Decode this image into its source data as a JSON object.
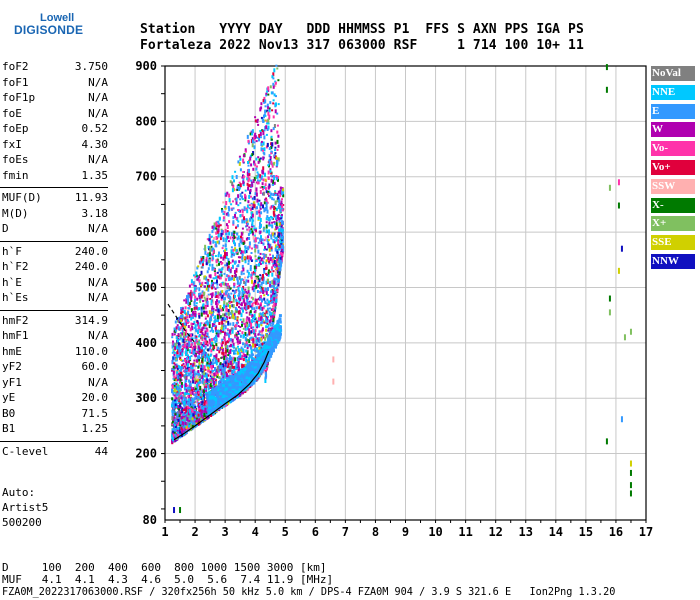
{
  "logo": {
    "line1": "Lowell",
    "line2": "DIGISONDE"
  },
  "header": {
    "line1": "Station   YYYY DAY   DDD HHMMSS P1  FFS S AXN PPS IGA PS",
    "line2": "Fortaleza 2022 Nov13 317 063000 RSF     1 714 100 10+ 11"
  },
  "params": [
    {
      "name": "foF2",
      "value": "3.750"
    },
    {
      "name": "foF1",
      "value": "N/A"
    },
    {
      "name": "foF1p",
      "value": "N/A"
    },
    {
      "name": "foE",
      "value": "N/A"
    },
    {
      "name": "foEp",
      "value": "0.52"
    },
    {
      "name": "fxI",
      "value": "4.30"
    },
    {
      "name": "foEs",
      "value": "N/A"
    },
    {
      "name": "fmin",
      "value": "1.35"
    },
    {
      "name": "MUF(D)",
      "value": "11.93"
    },
    {
      "name": "M(D)",
      "value": "3.18"
    },
    {
      "name": "D",
      "value": "N/A"
    },
    {
      "name": "h`F",
      "value": "240.0"
    },
    {
      "name": "h`F2",
      "value": "240.0"
    },
    {
      "name": "h`E",
      "value": "N/A"
    },
    {
      "name": "h`Es",
      "value": "N/A"
    },
    {
      "name": "hmF2",
      "value": "314.9"
    },
    {
      "name": "hmF1",
      "value": "N/A"
    },
    {
      "name": "hmE",
      "value": "110.0"
    },
    {
      "name": "yF2",
      "value": "60.0"
    },
    {
      "name": "yF1",
      "value": "N/A"
    },
    {
      "name": "yE",
      "value": "20.0"
    },
    {
      "name": "B0",
      "value": "71.5"
    },
    {
      "name": "B1",
      "value": "1.25"
    },
    {
      "name": "C-level",
      "value": "44"
    }
  ],
  "auto": {
    "line1": "Auto:",
    "line2": "Artist5",
    "line3": "500200"
  },
  "legend": [
    {
      "label": "NoVal",
      "color": "#808080",
      "text_color": "#ffffff"
    },
    {
      "label": "NNE",
      "color": "#00c8ff",
      "text_color": "#ffffff"
    },
    {
      "label": "E",
      "color": "#3399ff",
      "text_color": "#ffffff"
    },
    {
      "label": "W",
      "color": "#b000b0",
      "text_color": "#ffffff"
    },
    {
      "label": "Vo-",
      "color": "#ff33aa",
      "text_color": "#ffffff"
    },
    {
      "label": "Vo+",
      "color": "#e0003c",
      "text_color": "#ffffff"
    },
    {
      "label": "SSW",
      "color": "#ffb0b0",
      "text_color": "#ffffff"
    },
    {
      "label": "X-",
      "color": "#007a00",
      "text_color": "#ffffff"
    },
    {
      "label": "X+",
      "color": "#80c060",
      "text_color": "#ffffff"
    },
    {
      "label": "SSE",
      "color": "#d0d000",
      "text_color": "#ffffff"
    },
    {
      "label": "NNW",
      "color": "#1010c0",
      "text_color": "#ffffff"
    }
  ],
  "footer": {
    "line1": "D     100  200  400  600  800 1000 1500 3000 [km]",
    "line2": "MUF   4.1  4.1  4.3  4.6  5.0  5.6  7.4 11.9 [MHz]",
    "line3": "FZA0M_2022317063000.RSF / 320fx256h 50 kHz 5.0 km / DPS-4 FZA0M 904 / 3.9 S 321.6 E   Ion2Png 1.3.20"
  },
  "chart_data": {
    "type": "scatter",
    "xlim": [
      1,
      17
    ],
    "ylim": [
      80,
      900
    ],
    "x_ticks": [
      1,
      2,
      3,
      4,
      5,
      6,
      7,
      8,
      9,
      10,
      11,
      12,
      13,
      14,
      15,
      16,
      17
    ],
    "y_ticks": [
      80,
      200,
      300,
      400,
      500,
      600,
      700,
      800,
      900
    ],
    "grid": true,
    "trace_solid": {
      "x": [
        1.3,
        1.6,
        2.0,
        2.5,
        3.0,
        3.4,
        3.8,
        4.1,
        4.3,
        4.45
      ],
      "y": [
        225,
        235,
        250,
        270,
        290,
        305,
        325,
        345,
        365,
        385
      ]
    },
    "trace_dashed": {
      "x": [
        1.1,
        1.4,
        1.7,
        2.0
      ],
      "y": [
        470,
        445,
        420,
        400
      ]
    },
    "echo_regions": [
      {
        "name": "F-trace",
        "x_range": [
          1.2,
          4.8
        ],
        "y_range": [
          230,
          400
        ]
      },
      {
        "name": "spread-F",
        "x_range": [
          1.5,
          5.0
        ],
        "y_range": [
          400,
          900
        ]
      }
    ],
    "isolated_echoes": [
      {
        "x": 6.6,
        "y": 370,
        "color": "#ffb0b0"
      },
      {
        "x": 6.6,
        "y": 330,
        "color": "#ffb0b0"
      },
      {
        "x": 15.7,
        "y": 898,
        "color": "#007a00"
      },
      {
        "x": 15.7,
        "y": 857,
        "color": "#007a00"
      },
      {
        "x": 15.8,
        "y": 680,
        "color": "#80c060"
      },
      {
        "x": 16.1,
        "y": 690,
        "color": "#ff33aa"
      },
      {
        "x": 16.1,
        "y": 648,
        "color": "#007a00"
      },
      {
        "x": 16.2,
        "y": 570,
        "color": "#1010c0"
      },
      {
        "x": 16.1,
        "y": 530,
        "color": "#d0d000"
      },
      {
        "x": 15.8,
        "y": 480,
        "color": "#007a00"
      },
      {
        "x": 15.8,
        "y": 455,
        "color": "#80c060"
      },
      {
        "x": 16.3,
        "y": 410,
        "color": "#80c060"
      },
      {
        "x": 16.5,
        "y": 420,
        "color": "#80c060"
      },
      {
        "x": 16.2,
        "y": 262,
        "color": "#3399ff"
      },
      {
        "x": 15.7,
        "y": 222,
        "color": "#007a00"
      },
      {
        "x": 16.5,
        "y": 182,
        "color": "#d0d000"
      },
      {
        "x": 16.5,
        "y": 165,
        "color": "#007a00"
      },
      {
        "x": 16.5,
        "y": 143,
        "color": "#007a00"
      },
      {
        "x": 16.5,
        "y": 128,
        "color": "#007a00"
      },
      {
        "x": 1.3,
        "y": 98,
        "color": "#1010c0"
      },
      {
        "x": 1.5,
        "y": 98,
        "color": "#007a00"
      }
    ]
  }
}
